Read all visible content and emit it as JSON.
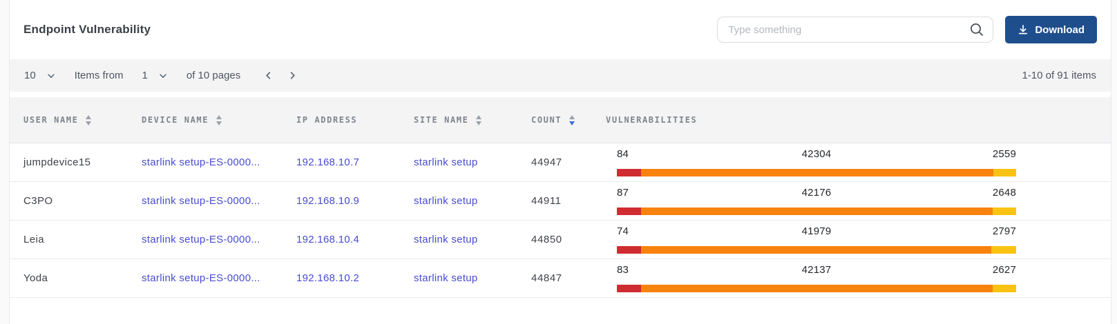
{
  "title": "Endpoint Vulnerability",
  "search": {
    "placeholder": "Type something"
  },
  "download_button": {
    "label": "Download"
  },
  "pagination": {
    "page_size": "10",
    "items_from_label": "Items from",
    "page": "1",
    "pages_label": "of 10 pages",
    "range_label": "1-10 of 91 items"
  },
  "table": {
    "columns": [
      {
        "key": "user",
        "label": "USER NAME",
        "sort": "both"
      },
      {
        "key": "device",
        "label": "DEVICE NAME",
        "sort": "both"
      },
      {
        "key": "ip",
        "label": "IP ADDRESS",
        "sort": "none"
      },
      {
        "key": "site",
        "label": "SITE NAME",
        "sort": "both"
      },
      {
        "key": "count",
        "label": "COUNT",
        "sort": "desc"
      },
      {
        "key": "vuln",
        "label": "VULNERABILITIES",
        "sort": "none"
      }
    ],
    "rows": [
      {
        "user": "jumpdevice15",
        "device": "starlink setup-ES-0000...",
        "ip": "192.168.10.7",
        "site": "starlink setup",
        "count": "44947",
        "vuln": {
          "critical": 84,
          "high": 42304,
          "medium": 2559
        }
      },
      {
        "user": "C3PO",
        "device": "starlink setup-ES-0000...",
        "ip": "192.168.10.9",
        "site": "starlink setup",
        "count": "44911",
        "vuln": {
          "critical": 87,
          "high": 42176,
          "medium": 2648
        }
      },
      {
        "user": "Leia",
        "device": "starlink setup-ES-0000...",
        "ip": "192.168.10.4",
        "site": "starlink setup",
        "count": "44850",
        "vuln": {
          "critical": 74,
          "high": 41979,
          "medium": 2797
        }
      },
      {
        "user": "Yoda",
        "device": "starlink setup-ES-0000...",
        "ip": "192.168.10.2",
        "site": "starlink setup",
        "count": "44847",
        "vuln": {
          "critical": 83,
          "high": 42137,
          "medium": 2627
        }
      }
    ]
  },
  "colors": {
    "critical": "#ce2c31",
    "high": "#f7820d",
    "medium": "#fac212",
    "link": "#474bd1",
    "button": "#1f4e8d",
    "sort_active": "#3d6dd8"
  }
}
